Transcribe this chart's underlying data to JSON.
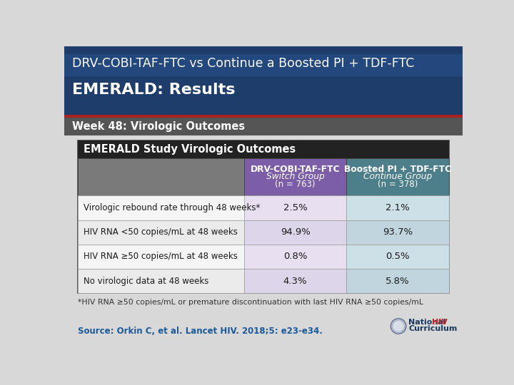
{
  "title_line1": "DRV-COBI-TAF-FTC vs Continue a Boosted PI + TDF-FTC",
  "title_line2": "EMERALD: Results",
  "subtitle": "Week 48: Virologic Outcomes",
  "header_bg": "#1e3d6b",
  "header_bg2": "#2a5a9a",
  "subtitle_bg": "#555555",
  "table_title": "EMERALD Study Virologic Outcomes",
  "col1_header_line1": "DRV-COBI-TAF-FTC",
  "col1_header_line2": "Switch Group",
  "col1_header_line3": "(n = 763)",
  "col2_header_line1": "Boosted PI + TDF-FTC",
  "col2_header_line2": "Continue Group",
  "col2_header_line3": "(n = 378)",
  "col1_header_bg": "#7b5ea7",
  "col2_header_bg": "#4d7f8a",
  "col1_data_bg_even": "#e8e0f0",
  "col1_data_bg_odd": "#ddd5ea",
  "col2_data_bg_even": "#cde0e8",
  "col2_data_bg_odd": "#c0d5de",
  "label_bg_even": "#f5f5f5",
  "label_bg_odd": "#ebebeb",
  "col_header_label_bg": "#7a7a7a",
  "table_header_bg": "#222222",
  "rows": [
    [
      "Virologic rebound rate through 48 weeks*",
      "2.5%",
      "2.1%"
    ],
    [
      "HIV RNA <50 copies/mL at 48 weeks",
      "94.9%",
      "93.7%"
    ],
    [
      "HIV RNA ≥50 copies/mL at 48 weeks",
      "0.8%",
      "0.5%"
    ],
    [
      "No virologic data at 48 weeks",
      "4.3%",
      "5.8%"
    ]
  ],
  "footnote": "*HIV RNA ≥50 copies/mL or premature discontinuation with last HIV RNA ≥50 copies/mL",
  "source": "Source: Orkin C, et al. Lancet HIV. 2018;5: e23-e34.",
  "source_color": "#1a5a99",
  "bg_color": "#d8d8d8",
  "table_border_color": "#444444",
  "row_border_color": "#999999",
  "red_line_color": "#aa2222",
  "logo_text_color": "#1a3a5c",
  "logo_hiv_color": "#cc2222"
}
